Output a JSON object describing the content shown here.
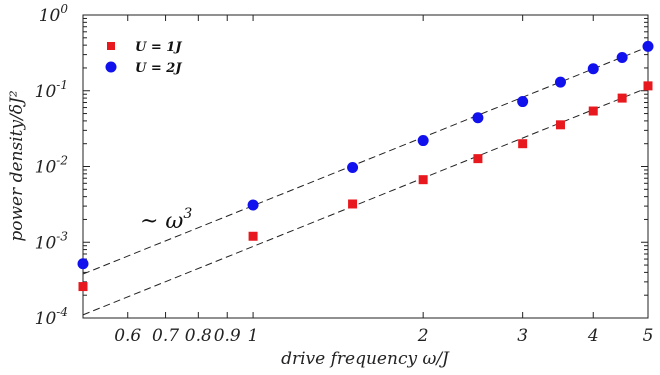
{
  "chart_data": {
    "type": "scatter",
    "title": "",
    "xlabel": "drive frequency ω/J",
    "ylabel": "power density/δJ²",
    "xscale": "log",
    "yscale": "log",
    "xlim": [
      0.5,
      5.0
    ],
    "ylim": [
      0.0001,
      1
    ],
    "grid": false,
    "legend_position": "top-left",
    "x_ticks": [
      {
        "value": 0.6,
        "label": "0.6"
      },
      {
        "value": 0.7,
        "label": "0.7"
      },
      {
        "value": 0.8,
        "label": "0.8"
      },
      {
        "value": 0.9,
        "label": "0.9"
      },
      {
        "value": 1,
        "label": "1"
      },
      {
        "value": 2,
        "label": "2"
      },
      {
        "value": 3,
        "label": "3"
      },
      {
        "value": 4,
        "label": "4"
      },
      {
        "value": 5,
        "label": "5"
      }
    ],
    "y_ticks": [
      {
        "value": 0.0001,
        "base": "10",
        "exp": "-4"
      },
      {
        "value": 0.001,
        "base": "10",
        "exp": "-3"
      },
      {
        "value": 0.01,
        "base": "10",
        "exp": "-2"
      },
      {
        "value": 0.1,
        "base": "10",
        "exp": "-1"
      },
      {
        "value": 1,
        "base": "10",
        "exp": "0"
      }
    ],
    "series": [
      {
        "name": "U = 1J",
        "marker": "square",
        "color": "#e8191e",
        "points": [
          [
            0.5,
            0.00026
          ],
          [
            1.0,
            0.0012
          ],
          [
            1.5,
            0.0032
          ],
          [
            2.0,
            0.0067
          ],
          [
            2.5,
            0.0127
          ],
          [
            3.0,
            0.02
          ],
          [
            3.5,
            0.0355
          ],
          [
            4.0,
            0.054
          ],
          [
            4.5,
            0.08
          ],
          [
            5.0,
            0.116
          ]
        ],
        "fit": {
          "style": "dashed",
          "x_range": [
            0.5,
            5.0
          ],
          "y_range": [
            0.00011,
            0.11
          ]
        }
      },
      {
        "name": "U = 2J",
        "marker": "circle",
        "color": "#1111ee",
        "points": [
          [
            0.5,
            0.00052
          ],
          [
            1.0,
            0.0031
          ],
          [
            1.5,
            0.0097
          ],
          [
            2.0,
            0.022
          ],
          [
            2.5,
            0.044
          ],
          [
            3.0,
            0.072
          ],
          [
            3.5,
            0.13
          ],
          [
            4.0,
            0.195
          ],
          [
            4.5,
            0.275
          ],
          [
            5.0,
            0.385
          ]
        ],
        "fit": {
          "style": "dashed",
          "x_range": [
            0.5,
            5.0
          ],
          "y_range": [
            0.00038,
            0.38
          ]
        }
      }
    ],
    "annotation": {
      "text": "~ ω",
      "superscript": "3",
      "x": 0.62,
      "y": 0.0033
    }
  }
}
